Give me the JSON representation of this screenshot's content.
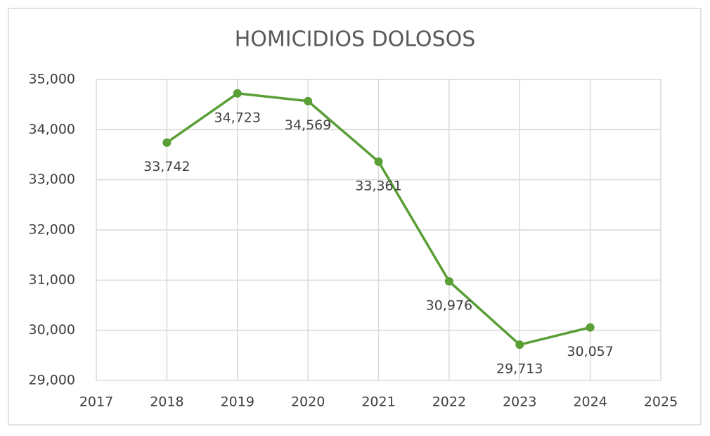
{
  "chart_data": {
    "type": "line",
    "title": "HOMICIDIOS DOLOSOS",
    "x": [
      2018,
      2019,
      2020,
      2021,
      2022,
      2023,
      2024
    ],
    "series": [
      {
        "name": "Homicidios dolosos",
        "color": "#5a9e36",
        "values": [
          33742,
          34723,
          34569,
          33361,
          30976,
          29713,
          30057
        ],
        "value_labels": [
          "33,742",
          "34,723",
          "34,569",
          "33,361",
          "30,976",
          "29,713",
          "30,057"
        ]
      }
    ],
    "xlim": [
      2017,
      2025
    ],
    "xticks": [
      2017,
      2018,
      2019,
      2020,
      2021,
      2022,
      2023,
      2024,
      2025
    ],
    "ylim": [
      29000,
      35000
    ],
    "yticks": [
      {
        "value": 29000,
        "label": "29,000"
      },
      {
        "value": 30000,
        "label": "30,000"
      },
      {
        "value": 31000,
        "label": "31,000"
      },
      {
        "value": 32000,
        "label": "32,000"
      },
      {
        "value": 33000,
        "label": "33,000"
      },
      {
        "value": 34000,
        "label": "34,000"
      },
      {
        "value": 35000,
        "label": "35,000"
      }
    ],
    "grid": true
  }
}
